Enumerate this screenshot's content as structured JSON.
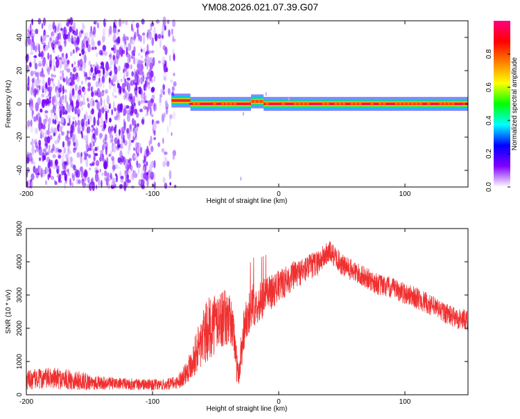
{
  "title": "YM08.2026.021.07.39.G07",
  "chart_data": [
    {
      "type": "heatmap",
      "name": "spectrogram",
      "xlabel": "Height of straight line (km)",
      "ylabel": "Frequency (Hz)",
      "xlim": [
        -200,
        150
      ],
      "ylim": [
        -50,
        50
      ],
      "xticks": [
        -200,
        -100,
        0,
        100
      ],
      "yticks": [
        -40,
        -20,
        0,
        20,
        40
      ],
      "noise_region_x": [
        -200,
        -80
      ],
      "signal_band": {
        "x_start": -85,
        "x_end": 150,
        "frequency_center": 0,
        "frequency_halfwidth": 3,
        "steps": [
          {
            "x": -85,
            "frequency": 2
          },
          {
            "x": -70,
            "frequency": 0
          },
          {
            "x": -22,
            "frequency": 1.5
          },
          {
            "x": -12,
            "frequency": 0
          }
        ]
      },
      "colorbar": {
        "label": "Normalized spectral amplitude",
        "range": [
          0,
          1
        ],
        "ticks": [
          "0.0",
          "0.2",
          "0.4",
          "0.6",
          "0.8"
        ],
        "colors": [
          "#ffffff",
          "#8000ff",
          "#0000ff",
          "#00ffff",
          "#00ff00",
          "#ffff00",
          "#ff8000",
          "#ff0000",
          "#ff0080"
        ]
      }
    },
    {
      "type": "line",
      "name": "snr",
      "xlabel": "Height of straight line (km)",
      "ylabel": "SNR (10 * v/v)",
      "xlim": [
        -200,
        150
      ],
      "ylim": [
        0,
        5000
      ],
      "xticks": [
        -200,
        -100,
        0,
        100
      ],
      "yticks": [
        0,
        1000,
        2000,
        3000,
        4000,
        5000
      ],
      "color": "#f03030",
      "series": [
        {
          "name": "SNR",
          "x": [
            -200,
            -180,
            -160,
            -140,
            -120,
            -100,
            -90,
            -80,
            -75,
            -70,
            -65,
            -60,
            -55,
            -50,
            -45,
            -40,
            -36,
            -33,
            -32,
            -30,
            -28,
            -25,
            -20,
            -15,
            -10,
            0,
            10,
            20,
            30,
            40,
            45,
            50,
            60,
            70,
            80,
            90,
            100,
            110,
            120,
            130,
            140,
            150
          ],
          "values": [
            450,
            500,
            430,
            350,
            320,
            300,
            300,
            380,
            600,
            900,
            1300,
            1700,
            2000,
            2200,
            2300,
            2300,
            2000,
            800,
            400,
            1200,
            1900,
            2400,
            2700,
            2800,
            3000,
            3250,
            3550,
            3750,
            3950,
            4300,
            4150,
            3900,
            3700,
            3500,
            3300,
            3200,
            3050,
            2900,
            2700,
            2500,
            2300,
            2250
          ],
          "spread": [
            300,
            320,
            300,
            200,
            180,
            170,
            170,
            200,
            320,
            450,
            650,
            900,
            950,
            950,
            900,
            800,
            700,
            500,
            250,
            650,
            700,
            650,
            650,
            600,
            550,
            500,
            450,
            400,
            400,
            350,
            330,
            340,
            330,
            320,
            330,
            320,
            330,
            330,
            320,
            320,
            320,
            320
          ]
        }
      ]
    }
  ]
}
